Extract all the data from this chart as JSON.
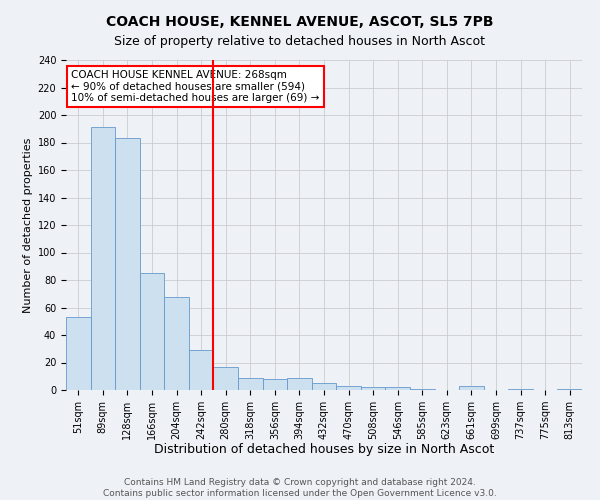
{
  "title": "COACH HOUSE, KENNEL AVENUE, ASCOT, SL5 7PB",
  "subtitle": "Size of property relative to detached houses in North Ascot",
  "xlabel": "Distribution of detached houses by size in North Ascot",
  "ylabel": "Number of detached properties",
  "bar_labels": [
    "51sqm",
    "89sqm",
    "128sqm",
    "166sqm",
    "204sqm",
    "242sqm",
    "280sqm",
    "318sqm",
    "356sqm",
    "394sqm",
    "432sqm",
    "470sqm",
    "508sqm",
    "546sqm",
    "585sqm",
    "623sqm",
    "661sqm",
    "699sqm",
    "737sqm",
    "775sqm",
    "813sqm"
  ],
  "bar_values": [
    53,
    191,
    183,
    85,
    68,
    29,
    17,
    9,
    8,
    9,
    5,
    3,
    2,
    2,
    1,
    0,
    3,
    0,
    1,
    0,
    1
  ],
  "bar_color": "#cce0f0",
  "bar_edge_color": "#6699cc",
  "vline_color": "red",
  "annotation_title": "COACH HOUSE KENNEL AVENUE: 268sqm",
  "annotation_line1": "← 90% of detached houses are smaller (594)",
  "annotation_line2": "10% of semi-detached houses are larger (69) →",
  "annotation_box_color": "white",
  "annotation_box_edge": "red",
  "ylim": [
    0,
    240
  ],
  "yticks": [
    0,
    20,
    40,
    60,
    80,
    100,
    120,
    140,
    160,
    180,
    200,
    220,
    240
  ],
  "footer1": "Contains HM Land Registry data © Crown copyright and database right 2024.",
  "footer2": "Contains public sector information licensed under the Open Government Licence v3.0.",
  "background_color": "#eef2f7",
  "grid_color": "#cccccc",
  "title_fontsize": 10,
  "subtitle_fontsize": 9,
  "xlabel_fontsize": 9,
  "ylabel_fontsize": 8,
  "tick_fontsize": 7,
  "annotation_fontsize": 7.5,
  "footer_fontsize": 6.5
}
